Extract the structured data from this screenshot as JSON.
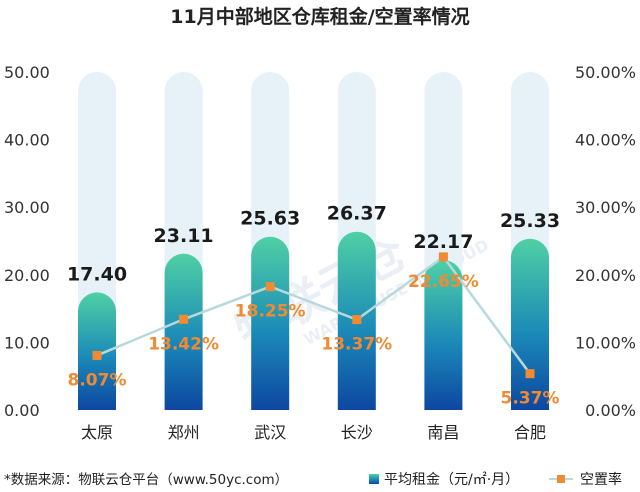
{
  "chart_data": {
    "type": "bar",
    "title": "11月中部地区仓库租金/空置率情况",
    "categories": [
      "太原",
      "郑州",
      "武汉",
      "长沙",
      "南昌",
      "合肥"
    ],
    "series": [
      {
        "name": "平均租金（元/㎡·月）",
        "type": "bar",
        "axis": "left",
        "values": [
          17.4,
          23.11,
          25.63,
          26.37,
          22.17,
          25.33
        ],
        "labels": [
          "17.40",
          "23.11",
          "25.63",
          "26.37",
          "22.17",
          "25.33"
        ]
      },
      {
        "name": "空置率",
        "type": "line",
        "axis": "right",
        "values": [
          8.07,
          13.42,
          18.25,
          13.37,
          22.65,
          5.37
        ],
        "labels": [
          "8.07%",
          "13.42%",
          "18.25%",
          "13.37%",
          "22.65%",
          "5.37%"
        ]
      }
    ],
    "ylim_left": [
      0,
      50
    ],
    "yticks_left": [
      "0.00",
      "10.00",
      "20.00",
      "30.00",
      "40.00",
      "50.00"
    ],
    "ylim_right": [
      0,
      50
    ],
    "yticks_right": [
      "0.00%",
      "10.00%",
      "20.00%",
      "30.00%",
      "40.00%",
      "50.00%"
    ],
    "legend_position": "bottom-right",
    "colors": {
      "bar_top": "#4fd0a4",
      "bar_bottom": "#0d47a1",
      "bar_background": "#e6f1f8",
      "line": "#b7d9dc",
      "marker": "#f08a33",
      "rate_label": "#f08a33"
    }
  },
  "source_note": "*数据来源：物联云仓平台（www.50yc.com）",
  "watermark": "物联云仓 WAREHOUSE IN CLOUD"
}
